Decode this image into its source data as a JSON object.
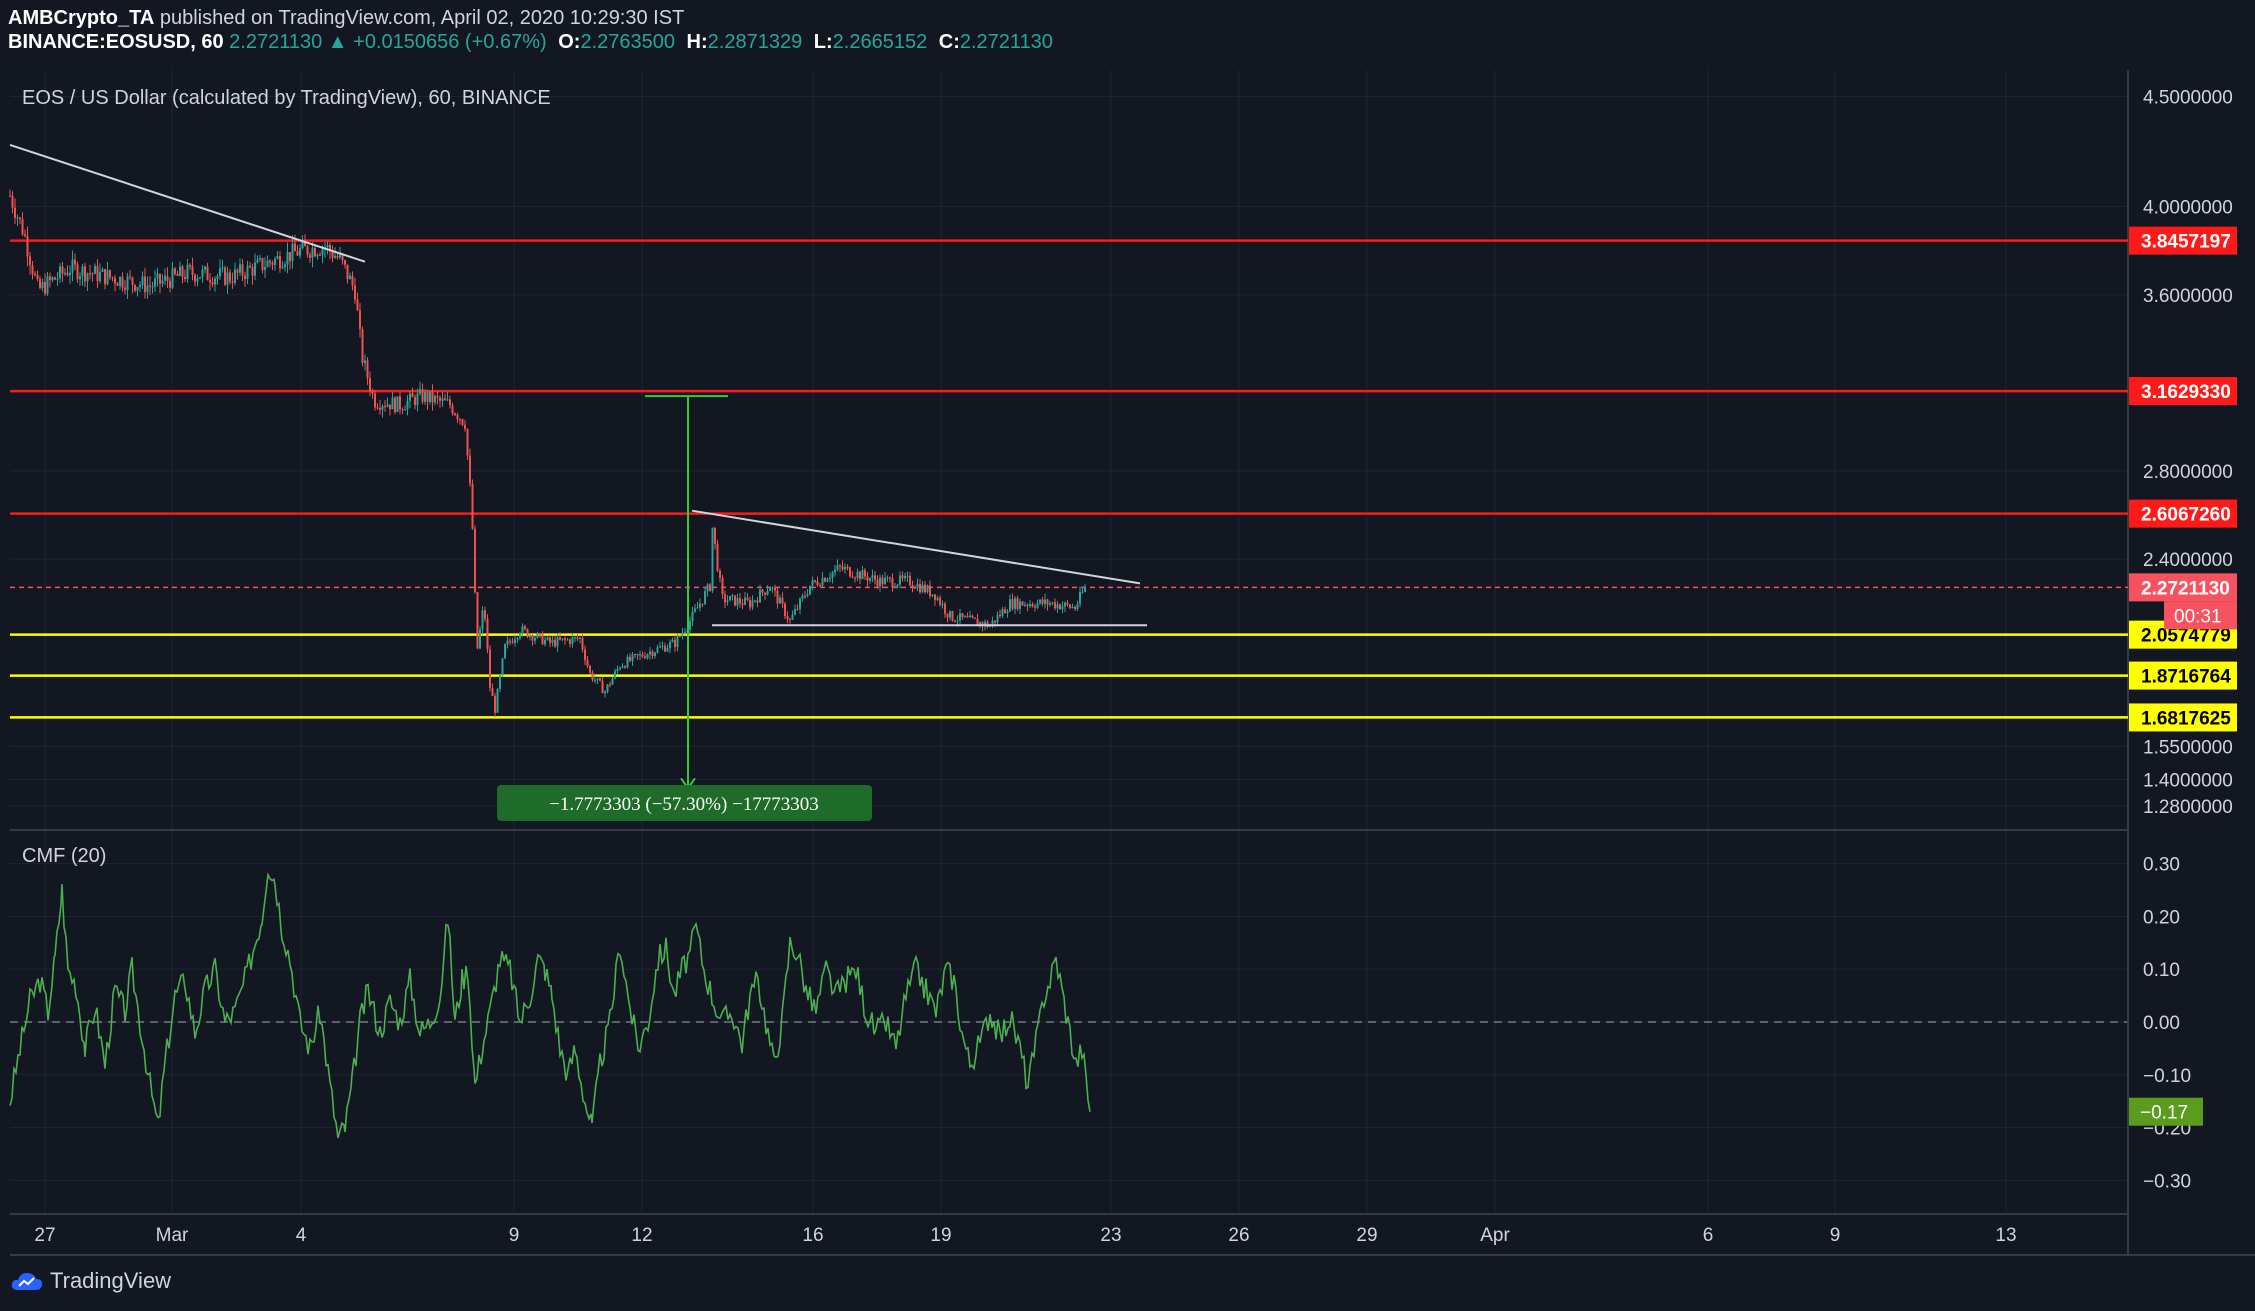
{
  "header": {
    "author": "AMBCrypto_TA",
    "published_text": "published on TradingView.com, April 02, 2020 10:29:30 IST",
    "symbol": "BINANCE:EOSUSD, 60",
    "last": "2.2721130",
    "arrow": "▲",
    "change": "+0.0150656 (+0.67%)",
    "open_label": "O:",
    "open": "2.2763500",
    "high_label": "H:",
    "high": "2.2871329",
    "low_label": "L:",
    "low": "2.2665152",
    "close_label": "C:",
    "close": "2.2721130"
  },
  "price_pane": {
    "title": "EOS / US Dollar (calculated by TradingView), 60, BINANCE",
    "countdown": "00:31"
  },
  "cmf_pane": {
    "title": "CMF (20)"
  },
  "brand": {
    "name": "TradingView"
  },
  "colors": {
    "background": "#131722",
    "up": "#26a69a",
    "down": "#ef5350",
    "resistance": "#ff1a1a",
    "support": "#ffff00",
    "cmf": "#4caf50",
    "measure": "#33cc33"
  },
  "chart_data": [
    {
      "type": "candlestick",
      "ylim": [
        1.18,
        4.62
      ],
      "y_ticks": [
        "4.5000000",
        "4.0000000",
        "3.6000000",
        "2.8000000",
        "2.4000000",
        "1.5500000",
        "1.4000000",
        "1.2800000"
      ],
      "x_ticks": [
        "27",
        "Mar",
        "4",
        "9",
        "12",
        "16",
        "19",
        "23",
        "26",
        "29",
        "Apr",
        "6",
        "9",
        "13"
      ],
      "grid": true,
      "close_path": [
        [
          0,
          4.05
        ],
        [
          14,
          3.88
        ],
        [
          28,
          3.62
        ],
        [
          60,
          3.72
        ],
        [
          100,
          3.68
        ],
        [
          140,
          3.64
        ],
        [
          178,
          3.7
        ],
        [
          220,
          3.68
        ],
        [
          255,
          3.74
        ],
        [
          290,
          3.8
        ],
        [
          315,
          3.82
        ],
        [
          330,
          3.76
        ],
        [
          345,
          3.62
        ],
        [
          352,
          3.32
        ],
        [
          364,
          3.12
        ],
        [
          390,
          3.1
        ],
        [
          412,
          3.14
        ],
        [
          440,
          3.1
        ],
        [
          455,
          3.02
        ],
        [
          462,
          2.6
        ],
        [
          467,
          1.98
        ],
        [
          474,
          2.2
        ],
        [
          480,
          1.82
        ],
        [
          485,
          1.72
        ],
        [
          495,
          2.0
        ],
        [
          510,
          2.08
        ],
        [
          540,
          2.02
        ],
        [
          570,
          2.04
        ],
        [
          580,
          1.88
        ],
        [
          595,
          1.8
        ],
        [
          610,
          1.92
        ],
        [
          640,
          1.98
        ],
        [
          665,
          2.02
        ],
        [
          680,
          2.12
        ],
        [
          700,
          2.28
        ],
        [
          702,
          2.56
        ],
        [
          712,
          2.22
        ],
        [
          740,
          2.2
        ],
        [
          760,
          2.28
        ],
        [
          780,
          2.12
        ],
        [
          800,
          2.28
        ],
        [
          830,
          2.36
        ],
        [
          870,
          2.3
        ],
        [
          900,
          2.3
        ],
        [
          925,
          2.24
        ],
        [
          940,
          2.14
        ],
        [
          980,
          2.1
        ],
        [
          1000,
          2.2
        ],
        [
          1040,
          2.2
        ],
        [
          1065,
          2.18
        ],
        [
          1075,
          2.27
        ]
      ],
      "horizontal_levels": {
        "resistance": [
          "3.8457197",
          "3.1629330",
          "2.6067260"
        ],
        "support": [
          "2.0574779",
          "1.8716764",
          "1.6817625"
        ],
        "last_price": "2.2721130"
      },
      "trendlines": [
        {
          "from": [
            0,
            4.28
          ],
          "to": [
            355,
            3.75
          ]
        },
        {
          "from": [
            682,
            2.62
          ],
          "to": [
            1130,
            2.29
          ]
        },
        {
          "from": [
            702,
            2.1
          ],
          "to": [
            1137,
            2.1
          ]
        }
      ],
      "measure": {
        "from": 3.14,
        "to": 1.36,
        "label": "−1.7773303 (−57.30%) −17773303"
      }
    },
    {
      "type": "line",
      "title": "CMF (20)",
      "ylim": [
        -0.36,
        0.36
      ],
      "y_ticks": [
        "0.30",
        "0.20",
        "0.10",
        "0.00",
        "−0.10",
        "−0.20",
        "−0.30"
      ],
      "last_value": "−0.17",
      "values": [
        [
          0,
          -0.15
        ],
        [
          10,
          -0.05
        ],
        [
          20,
          0.04
        ],
        [
          30,
          0.08
        ],
        [
          38,
          0.02
        ],
        [
          45,
          0.12
        ],
        [
          52,
          0.25
        ],
        [
          58,
          0.1
        ],
        [
          66,
          0.07
        ],
        [
          75,
          -0.05
        ],
        [
          85,
          0.03
        ],
        [
          95,
          -0.08
        ],
        [
          105,
          0.06
        ],
        [
          115,
          0.02
        ],
        [
          122,
          0.1
        ],
        [
          130,
          0.0
        ],
        [
          140,
          -0.12
        ],
        [
          148,
          -0.2
        ],
        [
          155,
          -0.08
        ],
        [
          165,
          0.05
        ],
        [
          175,
          0.08
        ],
        [
          185,
          -0.02
        ],
        [
          195,
          0.06
        ],
        [
          205,
          0.1
        ],
        [
          215,
          0.0
        ],
        [
          225,
          0.02
        ],
        [
          235,
          0.08
        ],
        [
          245,
          0.15
        ],
        [
          252,
          0.2
        ],
        [
          258,
          0.3
        ],
        [
          265,
          0.27
        ],
        [
          272,
          0.18
        ],
        [
          280,
          0.12
        ],
        [
          290,
          0.0
        ],
        [
          300,
          -0.05
        ],
        [
          310,
          0.02
        ],
        [
          320,
          -0.12
        ],
        [
          328,
          -0.22
        ],
        [
          335,
          -0.2
        ],
        [
          342,
          -0.12
        ],
        [
          350,
          0.0
        ],
        [
          358,
          0.06
        ],
        [
          370,
          -0.02
        ],
        [
          380,
          0.04
        ],
        [
          390,
          0.0
        ],
        [
          400,
          0.08
        ],
        [
          410,
          -0.02
        ],
        [
          420,
          0.0
        ],
        [
          430,
          0.05
        ],
        [
          438,
          0.2
        ],
        [
          445,
          0.0
        ],
        [
          452,
          0.08
        ],
        [
          458,
          0.1
        ],
        [
          465,
          -0.12
        ],
        [
          472,
          -0.05
        ],
        [
          480,
          0.02
        ],
        [
          490,
          0.12
        ],
        [
          500,
          0.1
        ],
        [
          510,
          0.0
        ],
        [
          520,
          0.05
        ],
        [
          528,
          0.12
        ],
        [
          535,
          0.1
        ],
        [
          542,
          0.05
        ],
        [
          550,
          -0.05
        ],
        [
          558,
          -0.1
        ],
        [
          565,
          -0.05
        ],
        [
          575,
          -0.15
        ],
        [
          582,
          -0.2
        ],
        [
          590,
          -0.08
        ],
        [
          600,
          0.0
        ],
        [
          610,
          0.15
        ],
        [
          618,
          0.05
        ],
        [
          628,
          -0.05
        ],
        [
          638,
          0.0
        ],
        [
          648,
          0.12
        ],
        [
          656,
          0.14
        ],
        [
          664,
          0.05
        ],
        [
          672,
          0.1
        ],
        [
          680,
          0.13
        ],
        [
          686,
          0.18
        ],
        [
          694,
          0.1
        ],
        [
          702,
          0.05
        ],
        [
          712,
          0.0
        ],
        [
          722,
          0.02
        ],
        [
          732,
          -0.04
        ],
        [
          740,
          0.05
        ],
        [
          748,
          0.08
        ],
        [
          756,
          0.0
        ],
        [
          764,
          -0.08
        ],
        [
          772,
          0.0
        ],
        [
          780,
          0.15
        ],
        [
          788,
          0.13
        ],
        [
          796,
          0.06
        ],
        [
          806,
          0.02
        ],
        [
          816,
          0.1
        ],
        [
          826,
          0.05
        ],
        [
          836,
          0.08
        ],
        [
          846,
          0.1
        ],
        [
          856,
          0.02
        ],
        [
          866,
          -0.02
        ],
        [
          876,
          0.0
        ],
        [
          886,
          -0.05
        ],
        [
          896,
          0.05
        ],
        [
          906,
          0.1
        ],
        [
          916,
          0.06
        ],
        [
          926,
          0.02
        ],
        [
          936,
          0.1
        ],
        [
          944,
          0.08
        ],
        [
          952,
          -0.02
        ],
        [
          960,
          -0.08
        ],
        [
          970,
          -0.04
        ],
        [
          980,
          0.02
        ],
        [
          990,
          -0.03
        ],
        [
          1000,
          0.01
        ],
        [
          1010,
          -0.05
        ],
        [
          1018,
          -0.12
        ],
        [
          1026,
          -0.04
        ],
        [
          1034,
          0.05
        ],
        [
          1040,
          0.08
        ],
        [
          1046,
          0.12
        ],
        [
          1052,
          0.06
        ],
        [
          1058,
          0.0
        ],
        [
          1066,
          -0.08
        ],
        [
          1072,
          -0.05
        ],
        [
          1080,
          -0.17
        ]
      ]
    }
  ]
}
